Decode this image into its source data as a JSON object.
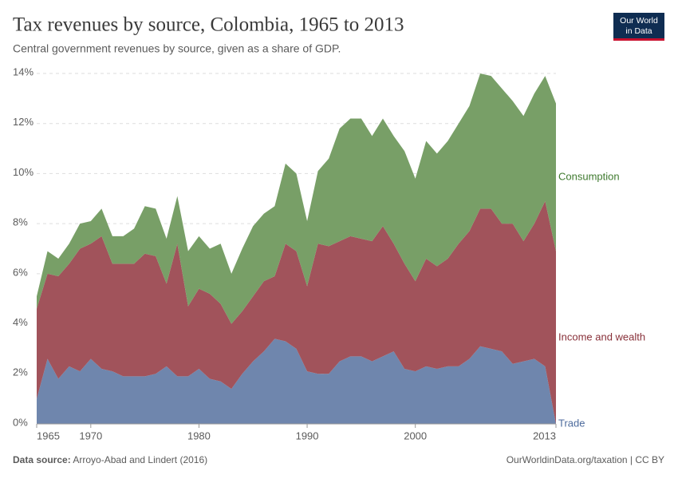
{
  "chart_data": {
    "type": "stacked_area",
    "title": "Tax revenues by source, Colombia, 1965 to 2013",
    "subtitle": "Central government revenues by source, given as a share of GDP.",
    "logo": [
      "Our World",
      "in Data"
    ],
    "source_label": "Data source:",
    "source": "Arroyo-Abad and Lindert (2016)",
    "note": "OurWorldinData.org/taxation | CC BY",
    "x": [
      1965,
      1966,
      1967,
      1968,
      1969,
      1970,
      1971,
      1972,
      1973,
      1974,
      1975,
      1976,
      1977,
      1978,
      1979,
      1980,
      1981,
      1982,
      1983,
      1984,
      1985,
      1986,
      1987,
      1988,
      1989,
      1990,
      1991,
      1992,
      1993,
      1994,
      1995,
      1996,
      1997,
      1998,
      1999,
      2000,
      2001,
      2002,
      2003,
      2004,
      2005,
      2006,
      2007,
      2008,
      2009,
      2010,
      2011,
      2012,
      2013
    ],
    "series": [
      {
        "name": "Trade",
        "color": "#6f86ad",
        "label_color": "#4c6a9c",
        "values": [
          1.0,
          2.6,
          1.8,
          2.3,
          2.1,
          2.6,
          2.2,
          2.1,
          1.9,
          1.9,
          1.9,
          2.0,
          2.3,
          1.9,
          1.9,
          2.2,
          1.8,
          1.7,
          1.4,
          2.0,
          2.5,
          2.9,
          3.4,
          3.3,
          3.0,
          2.1,
          2.0,
          2.0,
          2.5,
          2.7,
          2.7,
          2.5,
          2.7,
          2.9,
          2.2,
          2.1,
          2.3,
          2.2,
          2.3,
          2.3,
          2.6,
          3.1,
          3.0,
          2.9,
          2.4,
          2.5,
          2.6,
          2.3,
          0.0
        ]
      },
      {
        "name": "Income and wealth",
        "color": "#a1535b",
        "label_color": "#883039",
        "values": [
          3.6,
          3.4,
          4.1,
          4.1,
          4.9,
          4.6,
          5.3,
          4.3,
          4.5,
          4.5,
          4.9,
          4.7,
          3.3,
          5.3,
          2.8,
          3.2,
          3.4,
          3.1,
          2.6,
          2.5,
          2.6,
          2.8,
          2.5,
          3.9,
          3.9,
          3.4,
          5.2,
          5.1,
          4.8,
          4.8,
          4.7,
          4.8,
          5.2,
          4.3,
          4.2,
          3.6,
          4.3,
          4.1,
          4.3,
          4.9,
          5.1,
          5.5,
          5.6,
          5.1,
          5.6,
          4.8,
          5.4,
          6.6,
          6.9
        ]
      },
      {
        "name": "Consumption",
        "color": "#789f67",
        "label_color": "#3f7a2f",
        "values": [
          0.5,
          0.9,
          0.7,
          0.8,
          1.0,
          0.9,
          1.1,
          1.1,
          1.1,
          1.4,
          1.9,
          1.9,
          1.8,
          1.9,
          2.2,
          2.1,
          1.8,
          2.4,
          2.0,
          2.5,
          2.8,
          2.7,
          2.8,
          3.2,
          3.1,
          2.6,
          2.9,
          3.5,
          4.5,
          4.7,
          4.8,
          4.2,
          4.3,
          4.3,
          4.5,
          4.1,
          4.7,
          4.5,
          4.7,
          4.8,
          5.0,
          5.4,
          5.3,
          5.4,
          4.9,
          5.0,
          5.2,
          5.0,
          5.9
        ]
      }
    ],
    "xlim": [
      1965,
      2013
    ],
    "xticks": [
      1965,
      1970,
      1980,
      1990,
      2000,
      2013
    ],
    "ylim": [
      0,
      14
    ],
    "yticks": [
      {
        "value": 0,
        "label": "0%"
      },
      {
        "value": 2,
        "label": "2%"
      },
      {
        "value": 4,
        "label": "4%"
      },
      {
        "value": 6,
        "label": "6%"
      },
      {
        "value": 8,
        "label": "8%"
      },
      {
        "value": 10,
        "label": "10%"
      },
      {
        "value": 12,
        "label": "12%"
      },
      {
        "value": 14,
        "label": "14%"
      }
    ],
    "grid": true
  }
}
